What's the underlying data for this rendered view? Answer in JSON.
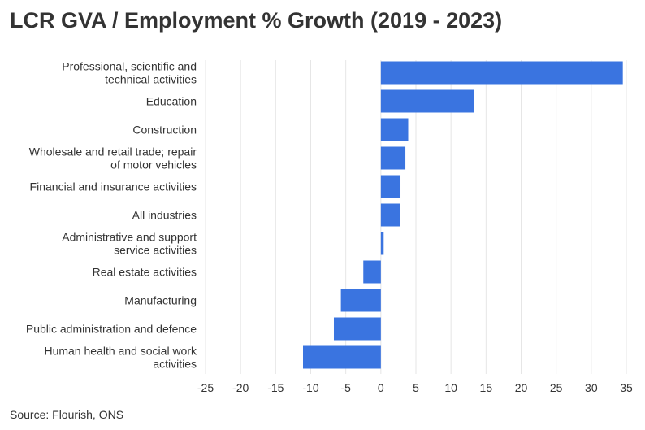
{
  "title": "LCR GVA / Employment % Growth (2019 - 2023)",
  "source": "Source: Flourish, ONS",
  "colors": {
    "bar": "#3a74e0",
    "text": "#333333",
    "grid": "#e6e6e6"
  },
  "chart_data": {
    "type": "bar",
    "orientation": "horizontal",
    "title": "LCR GVA / Employment % Growth (2019 - 2023)",
    "xlabel": "",
    "ylabel": "",
    "xlim": [
      -25,
      35
    ],
    "xticks": [
      -25,
      -20,
      -15,
      -10,
      -5,
      0,
      5,
      10,
      15,
      20,
      25,
      30,
      35
    ],
    "grid": true,
    "legend": "none",
    "categories": [
      "Professional, scientific and technical activities",
      "Education",
      "Construction",
      "Wholesale and retail trade; repair of motor vehicles",
      "Financial and insurance activities",
      "All industries",
      "Administrative and support service activities",
      "Real estate activities",
      "Manufacturing",
      "Public administration and defence",
      "Human health and social work activities"
    ],
    "category_lines": [
      [
        "Professional, scientific and",
        "technical activities"
      ],
      [
        "Education"
      ],
      [
        "Construction"
      ],
      [
        "Wholesale and retail trade; repair",
        "of motor vehicles"
      ],
      [
        "Financial and insurance activities"
      ],
      [
        "All industries"
      ],
      [
        "Administrative and support",
        "service activities"
      ],
      [
        "Real estate activities"
      ],
      [
        "Manufacturing"
      ],
      [
        "Public administration and defence"
      ],
      [
        "Human health and social work",
        "activities"
      ]
    ],
    "values": [
      34.5,
      13.3,
      3.9,
      3.5,
      2.8,
      2.7,
      0.4,
      -2.5,
      -5.7,
      -6.7,
      -11.1
    ]
  }
}
